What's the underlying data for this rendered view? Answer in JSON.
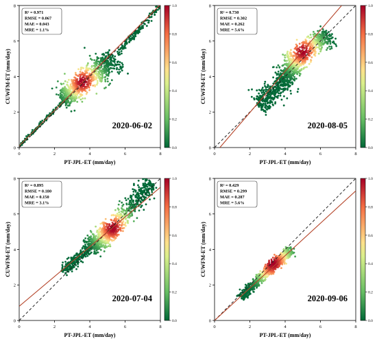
{
  "chart_data": [
    {
      "type": "scatter",
      "date_label": "2020-06-02",
      "xlabel": "PT-JPL-ET (mm/day)",
      "ylabel": "CUWFM-ET (mm/day)",
      "xlim": [
        0,
        8
      ],
      "ylim": [
        0,
        8
      ],
      "xticks": [
        0,
        2,
        4,
        6,
        8
      ],
      "yticks": [
        0,
        2,
        4,
        6,
        8
      ],
      "stats": [
        "R² = 0.971",
        "RMSE = 0.067",
        "MAE = 0.043",
        "MRE = 1.1%"
      ],
      "reference_line": {
        "name": "1:1",
        "x": [
          0,
          8
        ],
        "y": [
          0,
          8
        ]
      },
      "fit_line": {
        "x": [
          0,
          8
        ],
        "y": [
          0.1,
          8.05
        ]
      },
      "density_peak": [
        3.6,
        3.7
      ],
      "scatter_clouds": [
        {
          "x": [
            0,
            2.5
          ],
          "y": [
            0.1,
            2.6
          ],
          "spread": 0.05,
          "n": 120
        },
        {
          "x": [
            2.5,
            3.6
          ],
          "y": [
            2.6,
            3.7
          ],
          "spread": 0.3,
          "n": 380
        },
        {
          "x": [
            3.6,
            5.5
          ],
          "y": [
            3.7,
            5.0
          ],
          "spread": 0.35,
          "n": 420
        },
        {
          "x": [
            5.5,
            8
          ],
          "y": [
            5.2,
            8
          ],
          "spread": 0.08,
          "n": 140
        }
      ],
      "colorbar": {
        "min": 0,
        "max": 1,
        "ticks": [
          "0.0",
          "0.2",
          "0.4",
          "0.6",
          "0.8",
          "1.0"
        ]
      }
    },
    {
      "type": "scatter",
      "date_label": "2020-08-05",
      "xlabel": "PT-JPL-ET (mm/day)",
      "ylabel": "CUWFM-ET (mm/day)",
      "xlim": [
        0,
        8
      ],
      "ylim": [
        0,
        8
      ],
      "xticks": [
        0,
        2,
        4,
        6,
        8
      ],
      "yticks": [
        0,
        2,
        4,
        6,
        8
      ],
      "stats": [
        "R² = 0.730",
        "RMSE = 0.302",
        "MAE = 0.262",
        "MRE = 5.6%"
      ],
      "reference_line": {
        "name": "1:1",
        "x": [
          0,
          8
        ],
        "y": [
          0,
          8
        ]
      },
      "fit_line": {
        "x": [
          0.3,
          7.2
        ],
        "y": [
          0,
          8
        ]
      },
      "density_peak": [
        5.0,
        5.4
      ],
      "scatter_clouds": [
        {
          "x": [
            2.5,
            3.8
          ],
          "y": [
            2.3,
            3.7
          ],
          "spread": 0.3,
          "n": 300
        },
        {
          "x": [
            3.8,
            5.0
          ],
          "y": [
            3.7,
            5.4
          ],
          "spread": 0.3,
          "n": 500
        },
        {
          "x": [
            5.0,
            6.5
          ],
          "y": [
            5.4,
            6.4
          ],
          "spread": 0.3,
          "n": 300
        }
      ],
      "colorbar": {
        "min": 0,
        "max": 1,
        "ticks": [
          "0.0",
          "0.2",
          "0.4",
          "0.6",
          "0.8",
          "1.0"
        ]
      }
    },
    {
      "type": "scatter",
      "date_label": "2020-07-04",
      "xlabel": "PT-JPL-ET (mm/day)",
      "ylabel": "CUWFM-ET (mm/day)",
      "xlim": [
        0,
        8
      ],
      "ylim": [
        0,
        8
      ],
      "xticks": [
        0,
        2,
        4,
        6,
        8
      ],
      "yticks": [
        0,
        2,
        4,
        6,
        8
      ],
      "stats": [
        "R² = 0.895",
        "RMSE = 0.180",
        "MAE = 0.150",
        "MRE = 3.1%"
      ],
      "reference_line": {
        "name": "1:1",
        "x": [
          0,
          8
        ],
        "y": [
          0,
          8
        ]
      },
      "fit_line": {
        "x": [
          0,
          8
        ],
        "y": [
          0.8,
          7.5
        ]
      },
      "density_peak": [
        5.3,
        5.2
      ],
      "scatter_clouds": [
        {
          "x": [
            2.5,
            4.0
          ],
          "y": [
            2.8,
            4.1
          ],
          "spread": 0.15,
          "n": 250
        },
        {
          "x": [
            4.0,
            5.3
          ],
          "y": [
            4.1,
            5.2
          ],
          "spread": 0.25,
          "n": 500
        },
        {
          "x": [
            5.3,
            7.5
          ],
          "y": [
            5.2,
            7.8
          ],
          "spread": 0.25,
          "n": 400
        }
      ],
      "colorbar": {
        "min": 0,
        "max": 1,
        "ticks": [
          "0.0",
          "0.2",
          "0.4",
          "0.6",
          "0.8",
          "1.0"
        ]
      }
    },
    {
      "type": "scatter",
      "date_label": "2020-09-06",
      "xlabel": "PT-JPL-ET (mm/day)",
      "ylabel": "CUWFM-ET (mm/day)",
      "xlim": [
        0,
        8
      ],
      "ylim": [
        0,
        8
      ],
      "xticks": [
        0,
        2,
        4,
        6,
        8
      ],
      "yticks": [
        0,
        2,
        4,
        6,
        8
      ],
      "stats": [
        "R² = 0.429",
        "RMSE = 0.299",
        "MAE = 0.287",
        "MRE = 5.6%"
      ],
      "reference_line": {
        "name": "1:1",
        "x": [
          0,
          8
        ],
        "y": [
          0,
          8
        ]
      },
      "fit_line": {
        "x": [
          0,
          8
        ],
        "y": [
          0,
          7.3
        ]
      },
      "density_peak": [
        3.3,
        3.2
      ],
      "scatter_clouds": [
        {
          "x": [
            1.5,
            3.0
          ],
          "y": [
            1.3,
            2.8
          ],
          "spread": 0.12,
          "n": 300
        },
        {
          "x": [
            3.0,
            4.3
          ],
          "y": [
            2.8,
            4.0
          ],
          "spread": 0.15,
          "n": 400
        }
      ],
      "colorbar": {
        "min": 0,
        "max": 1,
        "ticks": [
          "0.0",
          "0.2",
          "0.4",
          "0.6",
          "0.8",
          "1.0"
        ]
      }
    }
  ]
}
